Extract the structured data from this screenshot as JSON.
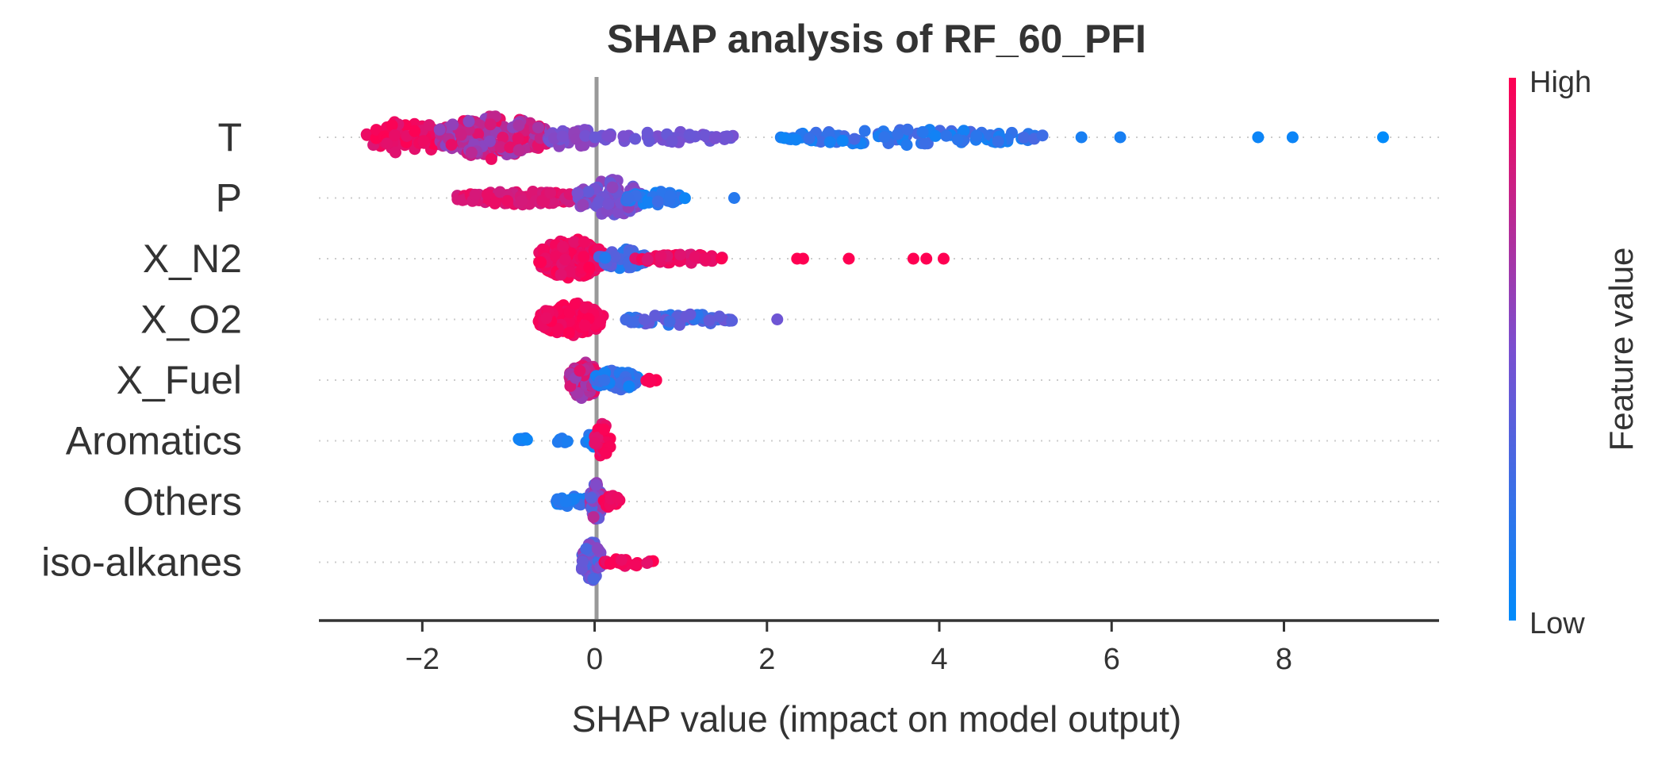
{
  "chart_data": {
    "type": "scatter",
    "title": "SHAP analysis of RF_60_PFI",
    "xlabel": "SHAP value (impact on model output)",
    "ylabel": "",
    "xlim": [
      -3.2,
      9.8
    ],
    "x_ticks": [
      -2,
      0,
      2,
      4,
      6,
      8
    ],
    "x_tick_labels": [
      "−2",
      "0",
      "2",
      "4",
      "6",
      "8"
    ],
    "features": [
      "T",
      "P",
      "X_N2",
      "X_O2",
      "X_Fuel",
      "Aromatics",
      "Others",
      "iso-alkanes"
    ],
    "colorbar": {
      "label": "Feature value",
      "high_label": "High",
      "low_label": "Low",
      "low_color": "#008bfb",
      "high_color": "#ff0052"
    },
    "series": [
      {
        "feature": "T",
        "clusters": [
          {
            "from": -2.65,
            "to": -1.7,
            "n": 70,
            "c0": 0.85,
            "c1": 1.0,
            "spread": 0.75
          },
          {
            "from": -1.8,
            "to": -0.55,
            "n": 200,
            "c0": 0.55,
            "c1": 0.95,
            "spread": 1.0
          },
          {
            "from": -0.55,
            "to": 0.0,
            "n": 40,
            "c0": 0.45,
            "c1": 0.6,
            "spread": 0.5
          },
          {
            "from": 0.0,
            "to": 1.65,
            "n": 45,
            "c0": 0.42,
            "c1": 0.52,
            "spread": 0.25
          },
          {
            "from": 2.15,
            "to": 5.2,
            "n": 110,
            "c0": 0.05,
            "c1": 0.3,
            "spread": 0.35
          }
        ],
        "points": [
          {
            "x": 5.65,
            "c": 0.1
          },
          {
            "x": 6.1,
            "c": 0.1
          },
          {
            "x": 7.7,
            "c": 0.05
          },
          {
            "x": 8.1,
            "c": 0.05
          },
          {
            "x": 9.15,
            "c": 0.0
          }
        ]
      },
      {
        "feature": "P",
        "clusters": [
          {
            "from": -1.6,
            "to": -0.1,
            "n": 110,
            "c0": 0.8,
            "c1": 0.95,
            "spread": 0.3
          },
          {
            "from": -0.2,
            "to": 0.55,
            "n": 80,
            "c0": 0.4,
            "c1": 0.6,
            "spread": 0.85
          },
          {
            "from": 0.35,
            "to": 1.05,
            "n": 50,
            "c0": 0.05,
            "c1": 0.25,
            "spread": 0.3
          }
        ],
        "points": [
          {
            "x": 1.62,
            "c": 0.15
          }
        ]
      },
      {
        "feature": "X_N2",
        "clusters": [
          {
            "from": -0.65,
            "to": 0.1,
            "n": 180,
            "c0": 0.88,
            "c1": 1.0,
            "spread": 0.9
          },
          {
            "from": 0.05,
            "to": 0.6,
            "n": 50,
            "c0": 0.1,
            "c1": 0.4,
            "spread": 0.45
          },
          {
            "from": 0.45,
            "to": 1.5,
            "n": 50,
            "c0": 0.85,
            "c1": 1.0,
            "spread": 0.2
          }
        ],
        "points": [
          {
            "x": 2.35,
            "c": 1.0
          },
          {
            "x": 2.42,
            "c": 1.0
          },
          {
            "x": 2.95,
            "c": 1.0
          },
          {
            "x": 3.7,
            "c": 1.0
          },
          {
            "x": 3.85,
            "c": 1.0
          },
          {
            "x": 4.05,
            "c": 1.0
          }
        ]
      },
      {
        "feature": "X_O2",
        "clusters": [
          {
            "from": -0.65,
            "to": 0.1,
            "n": 150,
            "c0": 0.9,
            "c1": 1.0,
            "spread": 0.75
          },
          {
            "from": 0.3,
            "to": 1.6,
            "n": 55,
            "c0": 0.15,
            "c1": 0.45,
            "spread": 0.25
          }
        ],
        "points": [
          {
            "x": 2.12,
            "c": 0.45
          }
        ]
      },
      {
        "feature": "X_Fuel",
        "clusters": [
          {
            "from": -0.3,
            "to": 0.05,
            "n": 80,
            "c0": 0.6,
            "c1": 0.95,
            "spread": 0.85
          },
          {
            "from": 0.0,
            "to": 0.5,
            "n": 60,
            "c0": 0.05,
            "c1": 0.3,
            "spread": 0.45
          },
          {
            "from": 0.6,
            "to": 0.72,
            "n": 6,
            "c0": 0.95,
            "c1": 1.0,
            "spread": 0.2
          }
        ],
        "points": []
      },
      {
        "feature": "Aromatics",
        "clusters": [
          {
            "from": -0.9,
            "to": -0.75,
            "n": 8,
            "c0": 0.05,
            "c1": 0.15,
            "spread": 0.15
          },
          {
            "from": -0.45,
            "to": -0.3,
            "n": 6,
            "c0": 0.05,
            "c1": 0.15,
            "spread": 0.12
          },
          {
            "from": -0.1,
            "to": 0.05,
            "n": 18,
            "c0": 0.05,
            "c1": 0.2,
            "spread": 0.35
          },
          {
            "from": 0.0,
            "to": 0.18,
            "n": 30,
            "c0": 0.85,
            "c1": 1.0,
            "spread": 0.9
          }
        ],
        "points": []
      },
      {
        "feature": "Others",
        "clusters": [
          {
            "from": -0.45,
            "to": -0.05,
            "n": 30,
            "c0": 0.05,
            "c1": 0.25,
            "spread": 0.25
          },
          {
            "from": -0.05,
            "to": 0.1,
            "n": 50,
            "c0": 0.3,
            "c1": 0.8,
            "spread": 0.9
          },
          {
            "from": 0.1,
            "to": 0.3,
            "n": 14,
            "c0": 0.9,
            "c1": 1.0,
            "spread": 0.3
          }
        ],
        "points": []
      },
      {
        "feature": "iso-alkanes",
        "clusters": [
          {
            "from": -0.15,
            "to": 0.08,
            "n": 70,
            "c0": 0.25,
            "c1": 0.6,
            "spread": 0.95
          },
          {
            "from": 0.1,
            "to": 0.68,
            "n": 22,
            "c0": 0.9,
            "c1": 1.0,
            "spread": 0.2
          }
        ],
        "points": []
      }
    ]
  }
}
